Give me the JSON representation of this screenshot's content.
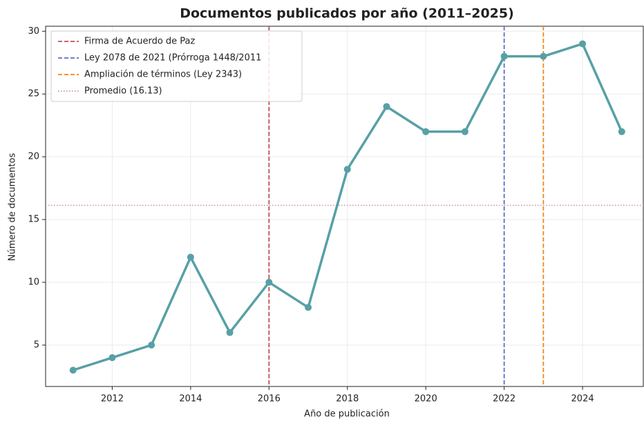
{
  "chart_data": {
    "type": "line",
    "title": "Documentos publicados por año (2011–2025)",
    "x_label": "Año de publicación",
    "y_label": "Número de documentos",
    "x": [
      2011,
      2012,
      2013,
      2014,
      2015,
      2016,
      2017,
      2018,
      2019,
      2020,
      2021,
      2022,
      2023,
      2024,
      2025
    ],
    "series": [
      {
        "name": "Documentos",
        "color": "#57a0a6",
        "values": [
          3,
          4,
          5,
          12,
          6,
          10,
          8,
          19,
          24,
          22,
          22,
          28,
          28,
          29,
          22
        ]
      }
    ],
    "xlim": [
      2010.3,
      2025.55
    ],
    "xticks": [
      2012,
      2014,
      2016,
      2018,
      2020,
      2022,
      2024
    ],
    "ylim": [
      1.7,
      30.4
    ],
    "yticks": [
      5,
      10,
      15,
      20,
      25,
      30
    ],
    "grid": true,
    "legend_position": "upper left",
    "reference_lines": [
      {
        "label": "Firma de Acuerdo de Paz",
        "x": 2016,
        "color": "#c44e52"
      },
      {
        "label": "Ley 2078 de 2021 (Prórroga 1448/2011",
        "x": 2022,
        "color": "#5a6fc4"
      },
      {
        "label": "Ampliación de términos (Ley 2343)",
        "x": 2023,
        "color": "#f58518"
      }
    ],
    "mean_line": {
      "label": "Promedio (16.13)",
      "value": 16.13,
      "color": "#c9909f"
    }
  }
}
